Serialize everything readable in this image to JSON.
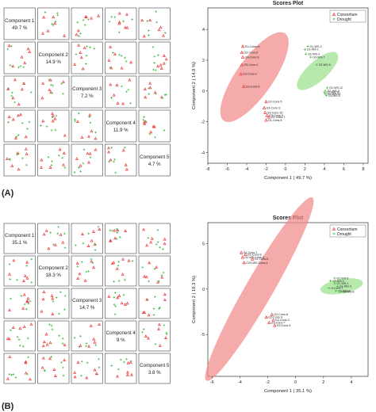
{
  "panels": [
    {
      "label": "(A)",
      "pairs_diag": [
        {
          "name": "Component 1",
          "pct": "49.7 %"
        },
        {
          "name": "Component 2",
          "pct": "14.9 %"
        },
        {
          "name": "Component 3",
          "pct": "7.2 %"
        },
        {
          "name": "Component 4",
          "pct": "11.9 %"
        },
        {
          "name": "Component 5",
          "pct": "4.7 %"
        }
      ]
    },
    {
      "label": "(B)",
      "pairs_diag": [
        {
          "name": "Component 1",
          "pct": "35.1 %"
        },
        {
          "name": "Component 2",
          "pct": "18.3 %"
        },
        {
          "name": "Component 3",
          "pct": "14.7 %"
        },
        {
          "name": "Component 4",
          "pct": "9 %"
        },
        {
          "name": "Component 5",
          "pct": "3.8 %"
        }
      ]
    }
  ],
  "colors": {
    "consortium": "#e8393a",
    "drought": "#3cb93c",
    "ellipse_red": "#f28b8b",
    "ellipse_green": "#9be08e"
  },
  "chart_data": [
    {
      "type": "scatter",
      "title": "Scores Plot",
      "xlabel": "Component 1 ( 49.7 %)",
      "ylabel": "Component 2 ( 14.9 %)",
      "xlim": [
        -8,
        8.5
      ],
      "ylim": [
        -4.7,
        5.4
      ],
      "xticks": [
        -8,
        -6,
        -4,
        -2,
        0,
        2,
        4,
        6,
        8
      ],
      "yticks": [
        -4,
        -2,
        0,
        2,
        4
      ],
      "legend_position": "top-right",
      "series": [
        {
          "name": "Consortium",
          "points": [
            {
              "x": -4.4,
              "y": 2.9,
              "label": "G1-Conto-6"
            },
            {
              "x": -4.5,
              "y": 2.5,
              "label": "G3-Cons-8"
            },
            {
              "x": -4.4,
              "y": 2.2,
              "label": "G3-Cons-S"
            },
            {
              "x": -4.5,
              "y": 1.7,
              "label": "G3-Cons-4"
            },
            {
              "x": -4.6,
              "y": 1.1,
              "label": "G3-Cons-3"
            },
            {
              "x": -4.3,
              "y": 0.3,
              "label": "G3-Cons-6"
            },
            {
              "x": -2.0,
              "y": -0.7,
              "label": "G2-Cons-5"
            },
            {
              "x": -2.2,
              "y": -1.1,
              "label": "G3-Cons-S"
            },
            {
              "x": -2.1,
              "y": -1.4,
              "label": "G3-Cons-15"
            },
            {
              "x": -1.9,
              "y": -1.6,
              "label": "G3-Cons-9"
            },
            {
              "x": -1.7,
              "y": -1.7,
              "label": "G2-Cons-7"
            },
            {
              "x": -2.0,
              "y": -1.9,
              "label": "G1-Cons-8"
            }
          ]
        },
        {
          "name": "Drought",
          "points": [
            {
              "x": 2.3,
              "y": 2.9,
              "label": "G1-WS-2"
            },
            {
              "x": 2.0,
              "y": 2.7,
              "label": "G1-WS-1"
            },
            {
              "x": 2.1,
              "y": 2.4,
              "label": "G1-WS-3"
            },
            {
              "x": 2.6,
              "y": 2.2,
              "label": "G3-WS-7"
            },
            {
              "x": 3.2,
              "y": 1.7,
              "label": "G3-WS-8"
            },
            {
              "x": 4.3,
              "y": 0.2,
              "label": "G2-WS-12"
            },
            {
              "x": 4.1,
              "y": 0.0,
              "label": "G2-WS-9"
            },
            {
              "x": 4.0,
              "y": -0.1,
              "label": "G2-WS-10"
            },
            {
              "x": 4.1,
              "y": -0.2,
              "label": "G2-WS-11"
            },
            {
              "x": 4.2,
              "y": -0.3,
              "label": "G3-WS-5"
            }
          ]
        }
      ],
      "ellipses": [
        {
          "series": "Consortium",
          "cx": -3.2,
          "cy": 0.9,
          "rx": 5.5,
          "ry": 1.2,
          "angle_deg": -55
        },
        {
          "series": "Drought",
          "cx": 3.3,
          "cy": 1.3,
          "rx": 2.7,
          "ry": 0.65,
          "angle_deg": -42
        }
      ]
    },
    {
      "type": "scatter",
      "title": "Scores Plot",
      "xlabel": "Component 1 ( 35.1 %)",
      "ylabel": "Component 2 ( 18.3 %)",
      "xlim": [
        -6.3,
        5.2
      ],
      "ylim": [
        -9.6,
        7.3
      ],
      "xticks": [
        -6,
        -4,
        -2,
        0,
        2,
        4
      ],
      "yticks": [
        -5,
        0,
        5
      ],
      "legend_position": "top-right",
      "series": [
        {
          "name": "Consortium",
          "points": [
            {
              "x": -3.9,
              "y": 4.0,
              "label": "G1-Cons-7"
            },
            {
              "x": -3.6,
              "y": 3.8,
              "label": "G1-Cons-8"
            },
            {
              "x": -3.8,
              "y": 3.5,
              "label": "G2-WS-Cons-3"
            },
            {
              "x": -3.1,
              "y": 3.3,
              "label": "G1-Cons-6"
            },
            {
              "x": -3.7,
              "y": 2.9,
              "label": "G2H-WS-Cons-4"
            },
            {
              "x": -1.7,
              "y": -2.8,
              "label": "G2-Cons-8"
            },
            {
              "x": -2.1,
              "y": -3.1,
              "label": "G2-Cons-S"
            },
            {
              "x": -1.6,
              "y": -3.4,
              "label": "G2-Cons-C"
            },
            {
              "x": -1.9,
              "y": -3.7,
              "label": "G3-Cons-7"
            },
            {
              "x": -1.5,
              "y": -4.0,
              "label": "G3-Cons-5"
            }
          ]
        },
        {
          "name": "Drought",
          "points": [
            {
              "x": 2.8,
              "y": 1.2,
              "label": "G2-WS-5"
            },
            {
              "x": 2.5,
              "y": 0.9,
              "label": "G2-WS-1"
            },
            {
              "x": 2.8,
              "y": 0.6,
              "label": "G1-WS-1"
            },
            {
              "x": 3.0,
              "y": 0.3,
              "label": "G1-WS-3"
            },
            {
              "x": 2.4,
              "y": 0.1,
              "label": "G1-WS-7"
            },
            {
              "x": 2.9,
              "y": -0.2,
              "label": "G3-WS-2"
            },
            {
              "x": 3.2,
              "y": -0.3,
              "label": "G3-WS-8"
            }
          ]
        }
      ],
      "ellipses": [
        {
          "series": "Consortium",
          "cx": -2.6,
          "cy": 0.0,
          "rx": 7.6,
          "ry": 1.5,
          "angle_deg": -60
        },
        {
          "series": "Drought",
          "cx": 3.3,
          "cy": 0.3,
          "rx": 1.55,
          "ry": 0.8,
          "angle_deg": -10
        }
      ]
    }
  ],
  "legend": {
    "consortium": "Consortium",
    "drought": "Drought"
  }
}
